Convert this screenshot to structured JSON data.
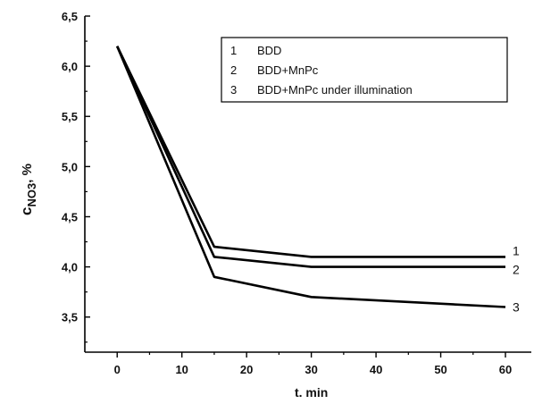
{
  "chart_data": {
    "type": "line",
    "xlabel": "t. min",
    "ylabel": {
      "main": "c",
      "sub": "NO3",
      "suffix": ", %"
    },
    "xlim": [
      -5,
      64
    ],
    "ylim": [
      3.15,
      6.5
    ],
    "x_ticks": [
      0,
      10,
      20,
      30,
      40,
      50,
      60
    ],
    "x_tick_labels": [
      "0",
      "10",
      "20",
      "30",
      "40",
      "50",
      "60"
    ],
    "y_ticks": [
      3.5,
      4.0,
      4.5,
      5.0,
      5.5,
      6.0,
      6.5
    ],
    "y_tick_labels": [
      "3,5",
      "4,0",
      "4,5",
      "5,0",
      "5,5",
      "6,0",
      "6,5"
    ],
    "grid": false,
    "legend_position": "top-right",
    "legend": [
      {
        "number": "1",
        "label": "BDD"
      },
      {
        "number": "2",
        "label": "BDD+MnPc"
      },
      {
        "number": "3",
        "label": "BDD+MnPc under illumination"
      }
    ],
    "series": [
      {
        "label": "1",
        "x": [
          0,
          15,
          30,
          60
        ],
        "y": [
          6.2,
          4.2,
          4.1,
          4.1
        ]
      },
      {
        "label": "2",
        "x": [
          0,
          15,
          30,
          60
        ],
        "y": [
          6.2,
          4.1,
          4.0,
          4.0
        ]
      },
      {
        "label": "3",
        "x": [
          0,
          15,
          30,
          60
        ],
        "y": [
          6.2,
          3.9,
          3.7,
          3.6
        ]
      }
    ]
  }
}
